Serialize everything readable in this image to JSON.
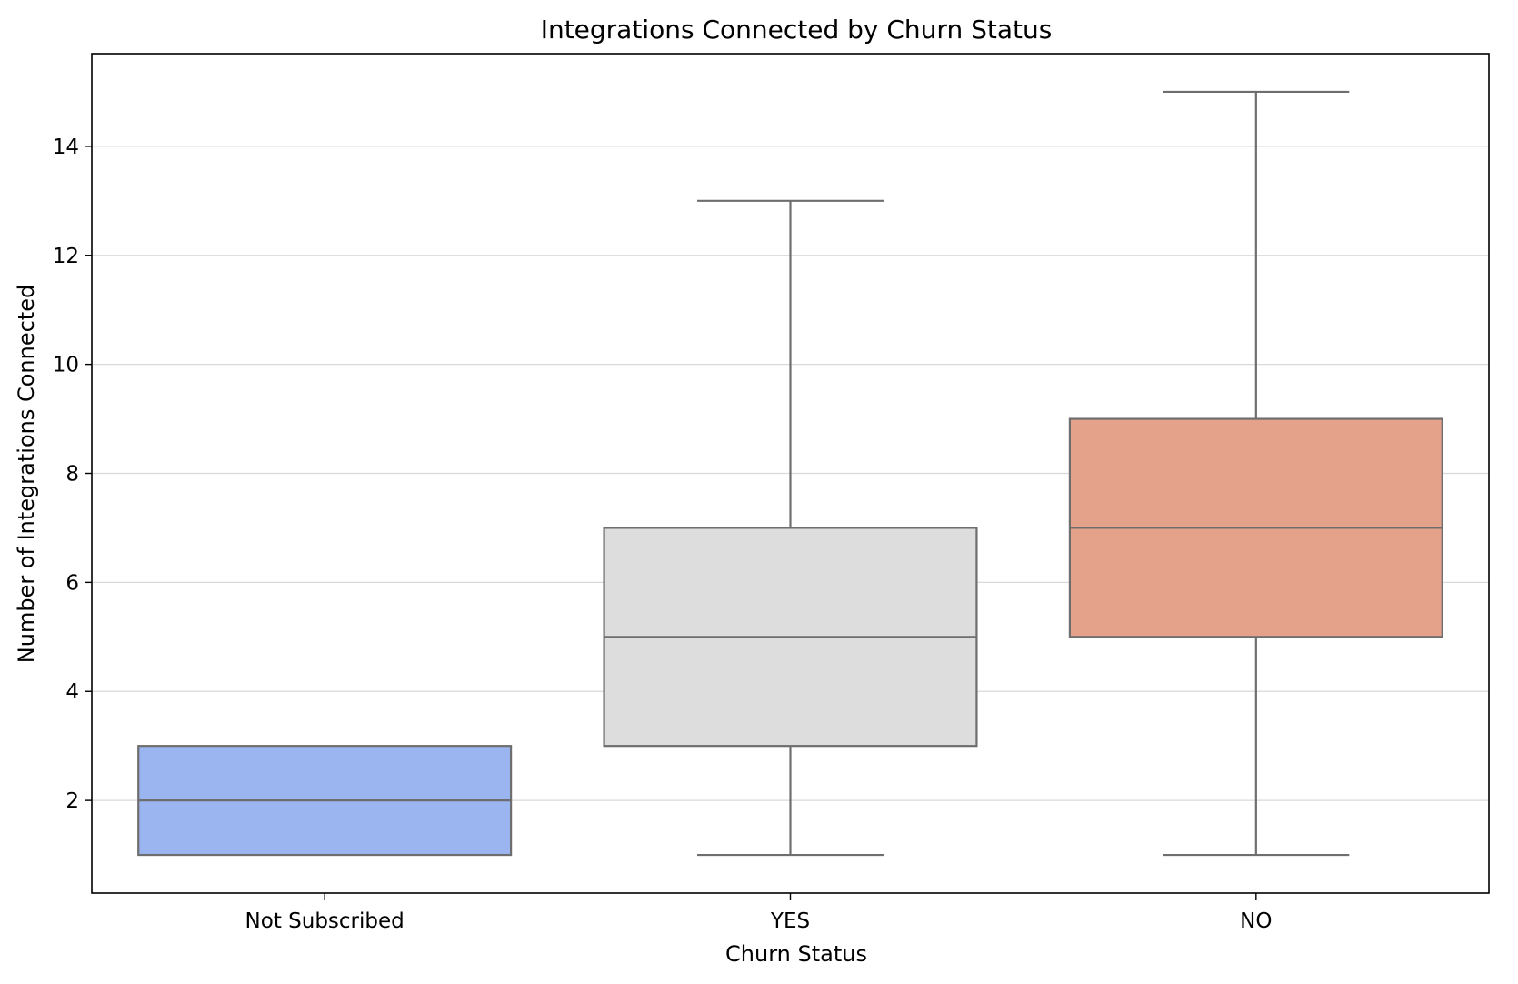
{
  "chart_data": {
    "type": "box",
    "title": "Integrations Connected by Churn Status",
    "xlabel": "Churn Status",
    "ylabel": "Number of Integrations Connected",
    "categories": [
      "Not Subscribed",
      "YES",
      "NO"
    ],
    "boxes": [
      {
        "category": "Not Subscribed",
        "whisker_low": 1,
        "q1": 1,
        "median": 2,
        "q3": 3,
        "whisker_high": 3,
        "color": "#9ab5ef"
      },
      {
        "category": "YES",
        "whisker_low": 1,
        "q1": 3,
        "median": 5,
        "q3": 7,
        "whisker_high": 13,
        "color": "#dddddd"
      },
      {
        "category": "NO",
        "whisker_low": 1,
        "q1": 5,
        "median": 7,
        "q3": 9,
        "whisker_high": 15,
        "color": "#e5a28b"
      }
    ],
    "ylim": [
      0.3,
      15.7
    ],
    "yticks": [
      2,
      4,
      6,
      8,
      10,
      12,
      14
    ],
    "grid": "horizontal",
    "line_color": "#6e6e6e",
    "grid_color": "#d9d9d9"
  }
}
